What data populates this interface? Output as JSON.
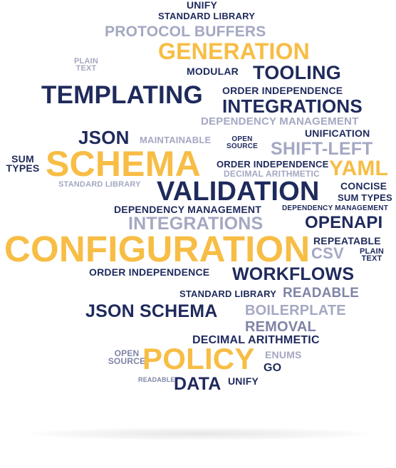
{
  "words": [
    {
      "text": "UNIFY",
      "color": "navy"
    },
    {
      "text": "STANDARD LIBRARY",
      "color": "navy"
    },
    {
      "text": "PROTOCOL BUFFERS",
      "color": "gray"
    },
    {
      "text": "GENERATION",
      "color": "gold"
    },
    {
      "text": "PLAIN TEXT",
      "color": "gray"
    },
    {
      "text": "MODULAR",
      "color": "navy"
    },
    {
      "text": "TOOLING",
      "color": "navy"
    },
    {
      "text": "TEMPLATING",
      "color": "navy"
    },
    {
      "text": "ORDER INDEPENDENCE",
      "color": "navy"
    },
    {
      "text": "INTEGRATIONS",
      "color": "navy"
    },
    {
      "text": "DEPENDENCY MANAGEMENT",
      "color": "gray"
    },
    {
      "text": "JSON",
      "color": "navy"
    },
    {
      "text": "MAINTAINABLE",
      "color": "gray"
    },
    {
      "text": "OPEN SOURCE",
      "color": "navy"
    },
    {
      "text": "UNIFICATION",
      "color": "navy"
    },
    {
      "text": "SHIFT-LEFT",
      "color": "gray"
    },
    {
      "text": "SUM TYPES",
      "color": "navy"
    },
    {
      "text": "SCHEMA",
      "color": "gold"
    },
    {
      "text": "ORDER INDEPENDENCE",
      "color": "navy"
    },
    {
      "text": "DECIMAL ARITHMETIC",
      "color": "gray"
    },
    {
      "text": "YAML",
      "color": "gold"
    },
    {
      "text": "STANDARD LIBRARY",
      "color": "gray"
    },
    {
      "text": "VALIDATION",
      "color": "navy"
    },
    {
      "text": "CONCISE",
      "color": "navy"
    },
    {
      "text": "SUM TYPES",
      "color": "navy"
    },
    {
      "text": "DEPENDENCY MANAGEMENT",
      "color": "navy"
    },
    {
      "text": "DEPENDENCY MANAGEMENT",
      "color": "navy"
    },
    {
      "text": "INTEGRATIONS",
      "color": "gray"
    },
    {
      "text": "OPENAPI",
      "color": "navy"
    },
    {
      "text": "CONFIGURATION",
      "color": "gold"
    },
    {
      "text": "REPEATABLE",
      "color": "navy"
    },
    {
      "text": "CSV",
      "color": "gray"
    },
    {
      "text": "PLAIN TEXT",
      "color": "navy"
    },
    {
      "text": "ORDER INDEPENDENCE",
      "color": "navy"
    },
    {
      "text": "WORKFLOWS",
      "color": "navy"
    },
    {
      "text": "STANDARD LIBRARY",
      "color": "navy"
    },
    {
      "text": "READABLE",
      "color": "slate"
    },
    {
      "text": "JSON SCHEMA",
      "color": "navy"
    },
    {
      "text": "BOILERPLATE",
      "color": "gray"
    },
    {
      "text": "REMOVAL",
      "color": "slate"
    },
    {
      "text": "DECIMAL ARITHMETIC",
      "color": "navy"
    },
    {
      "text": "OPEN SOURCE",
      "color": "slate"
    },
    {
      "text": "POLICY",
      "color": "gold"
    },
    {
      "text": "ENUMS",
      "color": "gray"
    },
    {
      "text": "GO",
      "color": "navy"
    },
    {
      "text": "READABLE",
      "color": "slate"
    },
    {
      "text": "DATA",
      "color": "navy"
    },
    {
      "text": "UNIFY",
      "color": "navy"
    }
  ],
  "palette": {
    "navy": "#1f2a5c",
    "gold": "#f7bd45",
    "gray": "#a4a8c2",
    "slate": "#7f84a6"
  }
}
